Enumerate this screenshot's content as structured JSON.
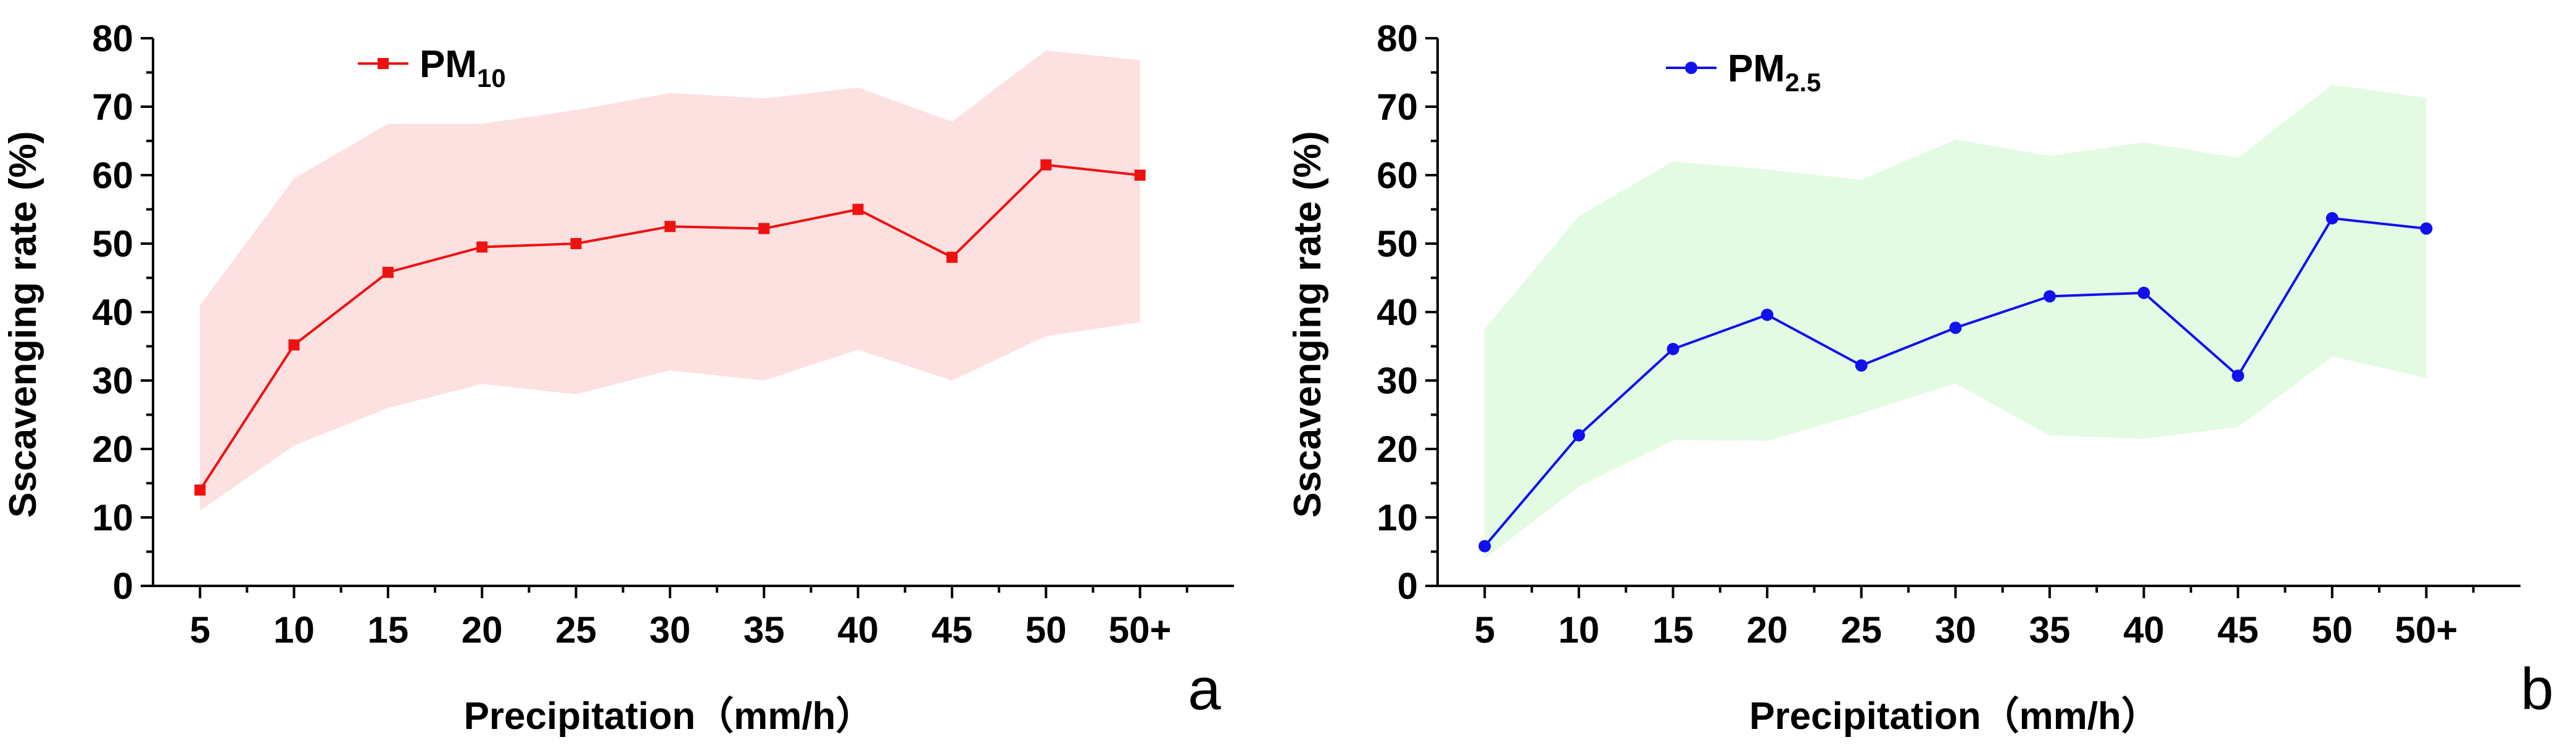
{
  "chart_data": [
    {
      "type": "line",
      "panel_label": "a",
      "categories": [
        "5",
        "10",
        "15",
        "20",
        "25",
        "30",
        "35",
        "40",
        "45",
        "50",
        "50+"
      ],
      "series": [
        {
          "name": "PM10",
          "name_base": "PM",
          "name_sub": "10",
          "color": "#ee1111",
          "marker": "square",
          "values": [
            14,
            35.2,
            45.8,
            49.5,
            50,
            52.5,
            52.2,
            55,
            48,
            61.5,
            60
          ]
        }
      ],
      "band": {
        "color": "#fde0e0",
        "upper": [
          41,
          59.5,
          67.5,
          67.5,
          69.5,
          72,
          71.2,
          72.8,
          67.8,
          78.2,
          76.8
        ],
        "lower": [
          11,
          20.5,
          26,
          29.5,
          28,
          31.5,
          30,
          34.5,
          30,
          36.5,
          38.5
        ]
      },
      "xlabel": "Precipitation（mm/h）",
      "ylabel": "Sscavenging rate (%)",
      "ylim": [
        0,
        80
      ],
      "yticks": [
        "0",
        "10",
        "20",
        "30",
        "40",
        "50",
        "60",
        "70",
        "80"
      ],
      "grid": false,
      "legend_position": "top-left"
    },
    {
      "type": "line",
      "panel_label": "b",
      "categories": [
        "5",
        "10",
        "15",
        "20",
        "25",
        "30",
        "35",
        "40",
        "45",
        "50",
        "50+"
      ],
      "series": [
        {
          "name": "PM2.5",
          "name_base": "PM",
          "name_sub": "2.5",
          "color": "#1111ee",
          "marker": "circle",
          "values": [
            5.8,
            22,
            34.6,
            39.6,
            32.2,
            37.7,
            42.3,
            42.8,
            30.7,
            53.7,
            52.2
          ]
        }
      ],
      "band": {
        "color": "#e2fbe2",
        "upper": [
          37.5,
          54,
          62,
          60.8,
          59.3,
          65.2,
          62.8,
          64.8,
          62.5,
          73.2,
          71.3
        ],
        "lower": [
          4,
          14.5,
          21.3,
          21.2,
          25.2,
          29.6,
          22,
          21.5,
          23.2,
          33.5,
          30.4
        ]
      },
      "xlabel": "Precipitation（mm/h）",
      "ylabel": "Sscavenging rate (%)",
      "ylim": [
        0,
        80
      ],
      "yticks": [
        "0",
        "10",
        "20",
        "30",
        "40",
        "50",
        "60",
        "70",
        "80"
      ],
      "grid": false,
      "legend_position": "top-left"
    }
  ]
}
